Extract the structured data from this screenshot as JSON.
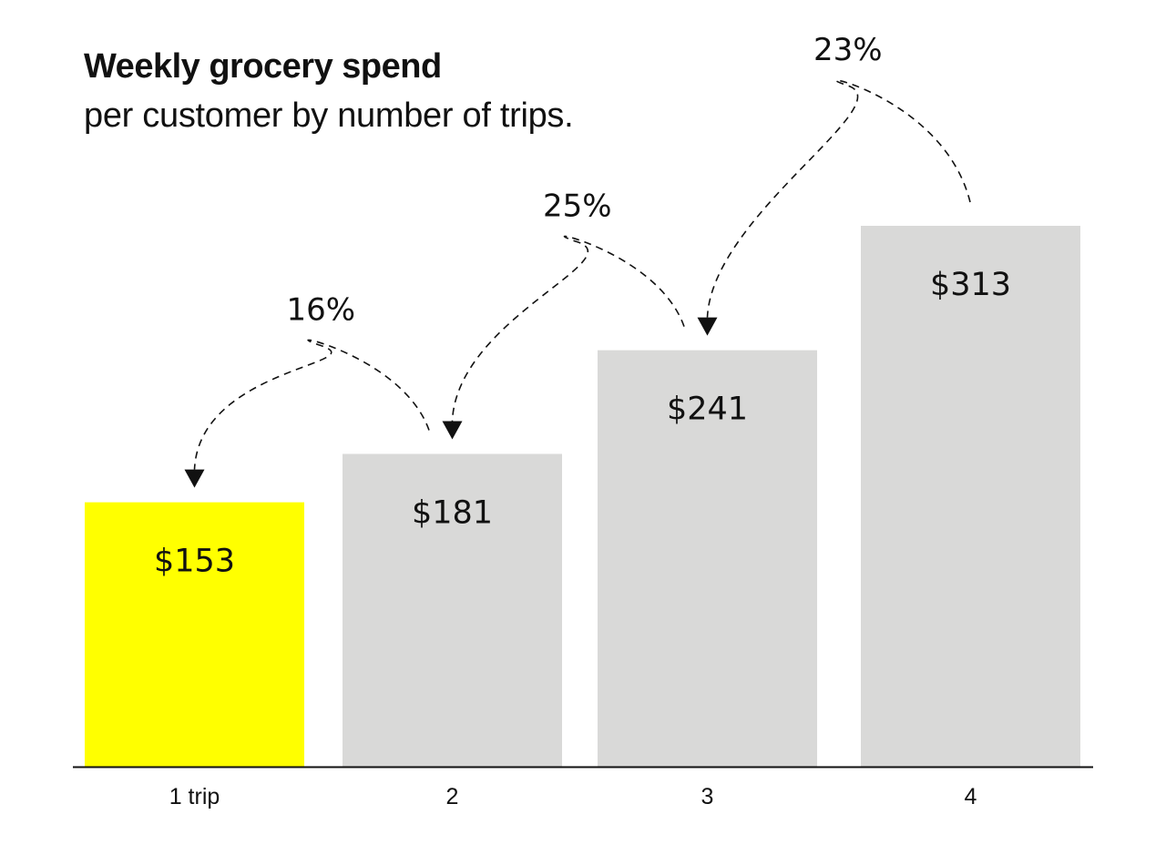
{
  "header": {
    "title": "Weekly grocery spend",
    "subtitle": "per customer by number of trips."
  },
  "colors": {
    "highlight": "#ffff00",
    "bar": "#d9d9d8",
    "axis": "#111111",
    "arrow": "#111111"
  },
  "chart_data": {
    "type": "bar",
    "title": "Weekly grocery spend",
    "subtitle": "per customer by number of trips.",
    "xlabel": "",
    "ylabel": "",
    "categories": [
      "1 trip",
      "2",
      "3",
      "4"
    ],
    "values": [
      153,
      181,
      241,
      313
    ],
    "value_labels": [
      "$153",
      "$181",
      "$241",
      "$313"
    ],
    "highlight_index": 0,
    "ylim": [
      0,
      313
    ],
    "grid": false,
    "annotations": [
      {
        "from": 1,
        "to": 0,
        "text": "16%"
      },
      {
        "from": 2,
        "to": 1,
        "text": "25%"
      },
      {
        "from": 3,
        "to": 2,
        "text": "23%"
      }
    ]
  }
}
